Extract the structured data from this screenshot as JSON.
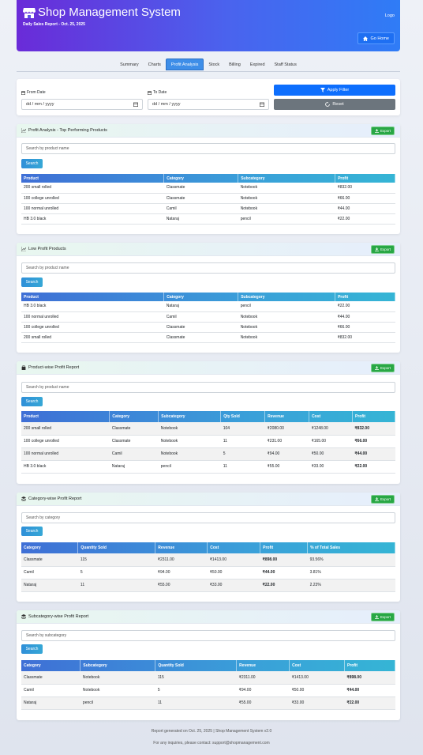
{
  "header": {
    "title": "Shop Management System",
    "subtitle": "Daily Sales Report - Oct. 25, 2025",
    "logo_text": "Logo",
    "go_home_label": "Go Home"
  },
  "tabs": [
    "Summary",
    "Charts",
    "Profit Analysis",
    "Stock",
    "Billing",
    "Expired",
    "Staff Status"
  ],
  "active_tab": "Profit Analysis",
  "filter": {
    "from_label": "From Date",
    "to_label": "To Date",
    "from_placeholder": "dd / mm / yyyy",
    "to_placeholder": "dd / mm / yyyy",
    "apply_label": "Apply Filter",
    "reset_label": "Reset"
  },
  "export_label": "Export",
  "search_label": "Search",
  "top_products": {
    "title": "Profit Analysis - Top Performing Products",
    "search_placeholder": "Search by product name",
    "columns": [
      "Product",
      "Category",
      "Subcategory",
      "Profit"
    ],
    "rows": [
      [
        "200 small rolled",
        "Classmate",
        "Notebook",
        "₹832.00"
      ],
      [
        "100 college unrolled",
        "Classmate",
        "Notebook",
        "₹66.00"
      ],
      [
        "100 normal unrolled",
        "Camil",
        "Notebook",
        "₹44.00"
      ],
      [
        "HB 3.0 black",
        "Nataraj",
        "pencil",
        "₹22.00"
      ]
    ]
  },
  "low_products": {
    "title": "Low Profit Products",
    "search_placeholder": "Search by product name",
    "columns": [
      "Product",
      "Category",
      "Subcategory",
      "Profit"
    ],
    "rows": [
      [
        "HB 3.0 black",
        "Nataraj",
        "pencil",
        "₹22.00"
      ],
      [
        "100 normal unrolled",
        "Camil",
        "Notebook",
        "₹44.00"
      ],
      [
        "100 college unrolled",
        "Classmate",
        "Notebook",
        "₹66.00"
      ],
      [
        "200 small rolled",
        "Classmate",
        "Notebook",
        "₹832.00"
      ]
    ]
  },
  "product_wise": {
    "title": "Product-wise Profit Report",
    "search_placeholder": "Search by product name",
    "columns": [
      "Product",
      "Category",
      "Subcategory",
      "Qty Sold",
      "Revenue",
      "Cost",
      "Profit"
    ],
    "rows": [
      [
        "200 small rolled",
        "Classmate",
        "Notebook",
        "104",
        "₹2080.00",
        "₹1248.00",
        "₹832.00"
      ],
      [
        "100 college unrolled",
        "Classmate",
        "Notebook",
        "11",
        "₹231.00",
        "₹165.00",
        "₹66.00"
      ],
      [
        "100 normal unrolled",
        "Camil",
        "Notebook",
        "5",
        "₹94.00",
        "₹50.00",
        "₹44.00"
      ],
      [
        "HB 3.0 black",
        "Nataraj",
        "pencil",
        "11",
        "₹55.00",
        "₹33.00",
        "₹22.00"
      ]
    ]
  },
  "category_wise": {
    "title": "Category-wise Profit Report",
    "search_placeholder": "Search by category",
    "columns": [
      "Category",
      "Quantity Sold",
      "Revenue",
      "Cost",
      "Profit",
      "% of Total Sales"
    ],
    "rows": [
      [
        "Classmate",
        "115",
        "₹2311.00",
        "₹1413.00",
        "₹898.00",
        "93.56%"
      ],
      [
        "Camil",
        "5",
        "₹94.00",
        "₹50.00",
        "₹44.00",
        "3.81%"
      ],
      [
        "Nataraj",
        "11",
        "₹55.00",
        "₹33.00",
        "₹22.00",
        "2.23%"
      ]
    ]
  },
  "subcategory_wise": {
    "title": "Subcategory-wise Profit Report",
    "search_placeholder": "Search by subcategory",
    "columns": [
      "Category",
      "Subcategory",
      "Quantity Sold",
      "Revenue",
      "Cost",
      "Profit"
    ],
    "rows": [
      [
        "Classmate",
        "Notebook",
        "115",
        "₹2311.00",
        "₹1413.00",
        "₹898.00"
      ],
      [
        "Camil",
        "Notebook",
        "5",
        "₹94.00",
        "₹50.00",
        "₹44.00"
      ],
      [
        "Nataraj",
        "pencil",
        "11",
        "₹55.00",
        "₹33.00",
        "₹22.00"
      ]
    ]
  },
  "footer": {
    "line1": "Report generated on Oct. 25, 2025 | Shop Management System v2.0",
    "line2": "For any inquiries, please contact: support@shopmanagement.com"
  }
}
